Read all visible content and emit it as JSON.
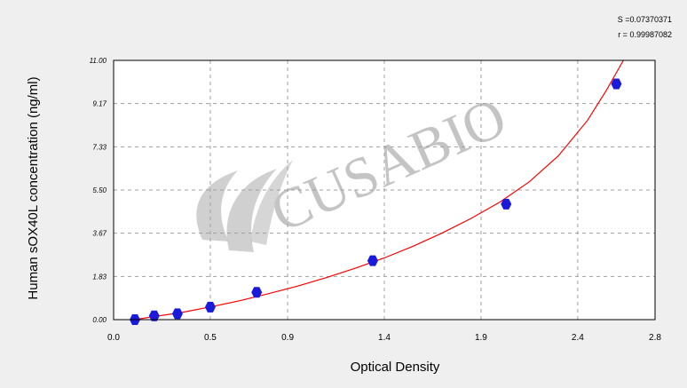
{
  "colors": {
    "background": "#efefef",
    "plot_background": "#ffffff",
    "grid": "#a0a0a0",
    "curve": "#ff0000",
    "points": "#1a1adb",
    "watermark": "#c4c4c4"
  },
  "stats": {
    "s_label": "S =0.07370371",
    "r_label": "r = 0.99987082"
  },
  "watermark": {
    "text": "CUSABIO"
  },
  "chart_data": {
    "type": "scatter",
    "title": "",
    "xlabel": "Optical Density",
    "ylabel": "Human sOX40L concentration (ng/ml)",
    "xlim": [
      0.0,
      2.8
    ],
    "ylim": [
      0.0,
      11.0
    ],
    "grid": true,
    "x_ticks": [
      0.0,
      0.5,
      0.9,
      1.4,
      1.9,
      2.4,
      2.8
    ],
    "x_tick_labels": [
      "0.0",
      "0.5",
      "0.9",
      "1.4",
      "1.9",
      "2.4",
      "2.8"
    ],
    "y_ticks": [
      0.0,
      1.83,
      3.67,
      5.5,
      7.33,
      9.17,
      11.0
    ],
    "y_tick_labels": [
      "0.00",
      "1.83",
      "3.67",
      "5.50",
      "7.33",
      "9.17",
      "11.00"
    ],
    "series": [
      {
        "kind": "points",
        "x": [
          0.11,
          0.21,
          0.33,
          0.5,
          0.74,
          1.34,
          2.03,
          2.6
        ],
        "y": [
          0.0,
          0.16,
          0.25,
          0.53,
          1.16,
          2.5,
          4.9,
          10.0
        ]
      },
      {
        "kind": "fit-curve",
        "x": [
          0.11,
          0.2,
          0.35,
          0.5,
          0.65,
          0.8,
          0.95,
          1.1,
          1.25,
          1.4,
          1.55,
          1.7,
          1.85,
          2.0,
          2.15,
          2.3,
          2.45,
          2.55,
          2.65
        ],
        "y": [
          0.0,
          0.12,
          0.3,
          0.54,
          0.8,
          1.1,
          1.42,
          1.78,
          2.18,
          2.62,
          3.12,
          3.68,
          4.3,
          5.0,
          5.85,
          6.95,
          8.45,
          9.75,
          11.2
        ]
      }
    ]
  }
}
